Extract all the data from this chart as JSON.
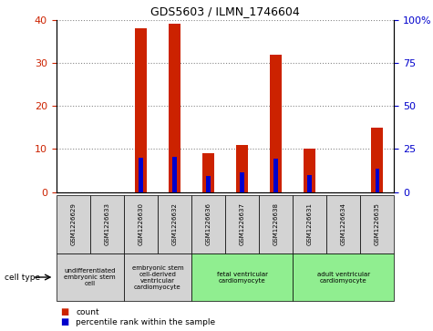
{
  "title": "GDS5603 / ILMN_1746604",
  "samples": [
    "GSM1226629",
    "GSM1226633",
    "GSM1226630",
    "GSM1226632",
    "GSM1226636",
    "GSM1226637",
    "GSM1226638",
    "GSM1226631",
    "GSM1226634",
    "GSM1226635"
  ],
  "counts": [
    0,
    0,
    38,
    39,
    9,
    11,
    32,
    10,
    0,
    15
  ],
  "percentiles": [
    0,
    0,
    20,
    20.5,
    9.5,
    11.5,
    19.5,
    10,
    0,
    13.5
  ],
  "ylim_left": [
    0,
    40
  ],
  "ylim_right": [
    0,
    100
  ],
  "yticks_left": [
    0,
    10,
    20,
    30,
    40
  ],
  "yticks_right": [
    0,
    25,
    50,
    75,
    100
  ],
  "yticklabels_right": [
    "0",
    "25",
    "50",
    "75",
    "100%"
  ],
  "cell_types": [
    {
      "label": "undifferentiated\nembryonic stem\ncell",
      "start": 0,
      "end": 2,
      "color": "#d3d3d3"
    },
    {
      "label": "embryonic stem\ncell-derived\nventricular\ncardiomyocyte",
      "start": 2,
      "end": 4,
      "color": "#d3d3d3"
    },
    {
      "label": "fetal ventricular\ncardiomyocyte",
      "start": 4,
      "end": 7,
      "color": "#90EE90"
    },
    {
      "label": "adult ventricular\ncardiomyocyte",
      "start": 7,
      "end": 10,
      "color": "#90EE90"
    }
  ],
  "bar_color": "#cc2200",
  "percentile_color": "#0000cc",
  "grid_color": "#888888",
  "bg_color": "#ffffff",
  "left_tick_color": "#cc2200",
  "right_tick_color": "#0000cc",
  "bar_width": 0.35,
  "percentile_bar_width": 0.12,
  "legend_count_label": "count",
  "legend_percentile_label": "percentile rank within the sample",
  "cell_type_label": "cell type"
}
